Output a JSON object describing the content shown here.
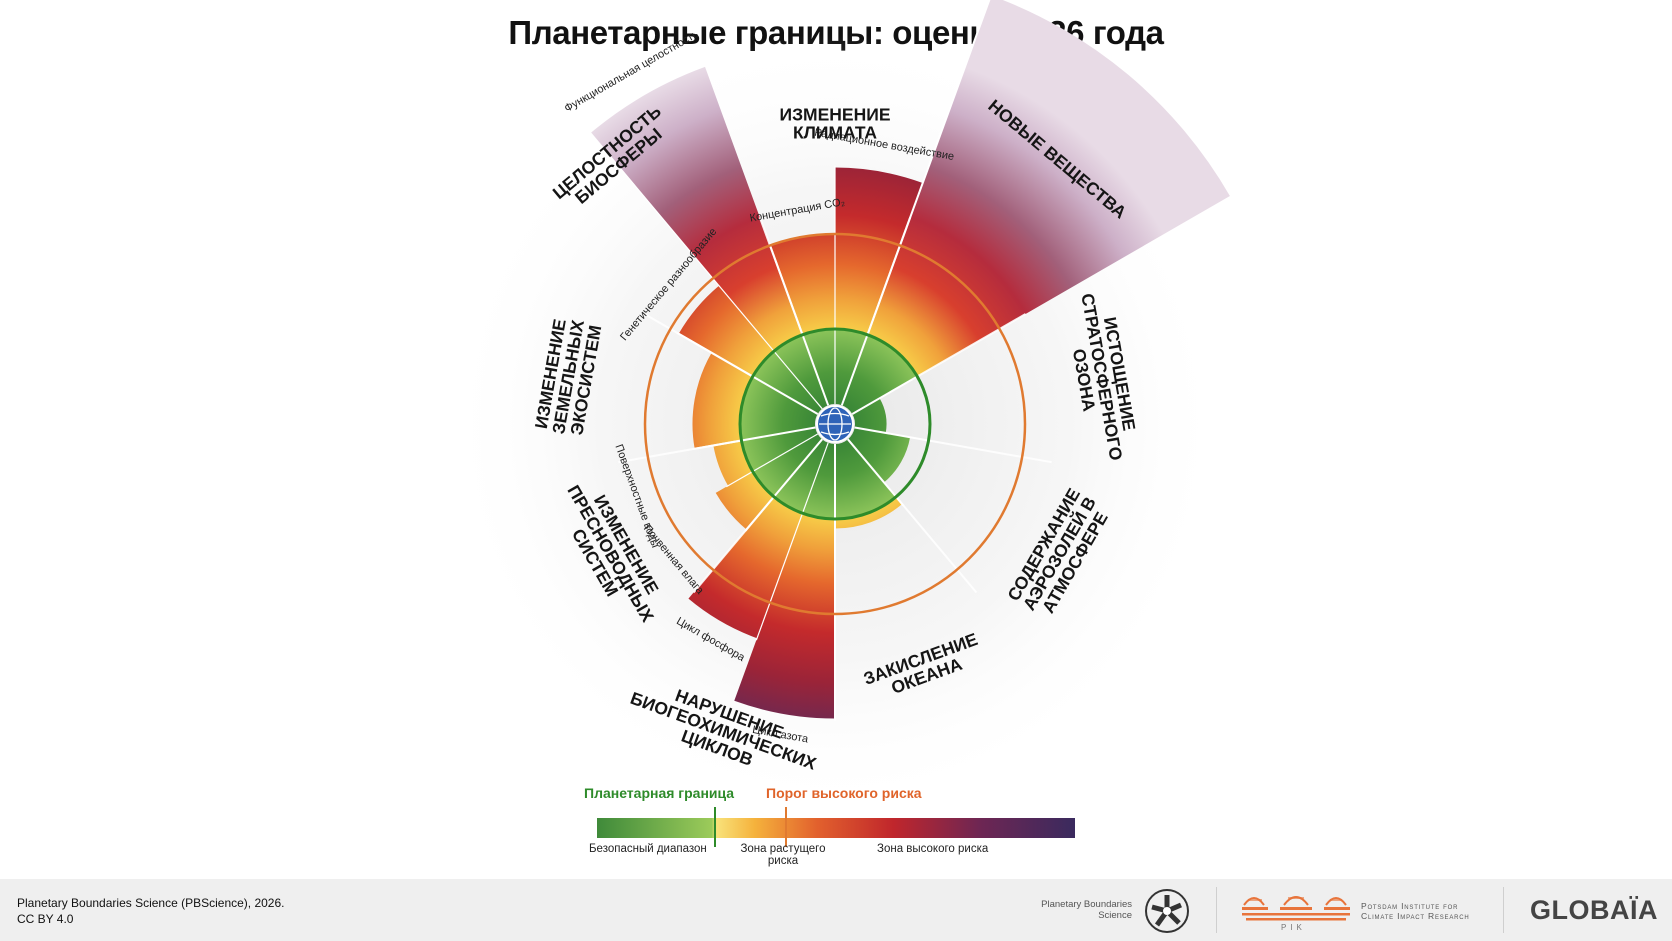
{
  "title": "Планетарные границы: оценка 2026 года",
  "colors": {
    "safe": "#4e9a3a",
    "boundary_line": "#2e8b2a",
    "high_risk_line": "#e07a30",
    "increasing": "#f5c33b",
    "high": "#c0262c",
    "very_high": "#3d2860",
    "ghost_label": "#151515"
  },
  "chart_data": {
    "type": "polar-wedge",
    "scale_note": "radial value: 1 = planetary boundary (green circle), 2 = high-risk threshold (orange circle)",
    "categories": [
      {
        "name": "ИЗМЕНЕНИЕ КЛИМАТА",
        "sub": [
          {
            "name": "Концентрация CO₂",
            "value": 2.0
          },
          {
            "name": "Радиационное воздействие",
            "value": 2.7
          }
        ]
      },
      {
        "name": "НОВЫЕ ВЕЩЕСТВА",
        "sub": [
          {
            "name": "",
            "value": 4.8,
            "unknown_upper": true
          }
        ]
      },
      {
        "name": "ИСТОЩЕНИЕ СТРАТОСФЕРНОГО ОЗОНА",
        "sub": [
          {
            "name": "",
            "value": 0.42
          }
        ]
      },
      {
        "name": "СОДЕРЖАНИЕ АЭРОЗОЛЕЙ В АТМОСФЕРЕ",
        "sub": [
          {
            "name": "",
            "value": 0.75
          }
        ]
      },
      {
        "name": "ЗАКИСЛЕНИЕ ОКЕАНА",
        "sub": [
          {
            "name": "",
            "value": 1.1
          }
        ]
      },
      {
        "name": "НАРУШЕНИЕ БИОГЕОХИМИЧЕСКИХ ЦИКЛОВ",
        "sub": [
          {
            "name": "Цикл азота",
            "value": 3.1
          },
          {
            "name": "Цикл фосфора",
            "value": 2.4
          }
        ]
      },
      {
        "name": "ИЗМЕНЕНИЕ ПРЕСНОВОДНЫХ СИСТЕМ",
        "sub": [
          {
            "name": "Почвенная влага",
            "value": 1.45
          },
          {
            "name": "Поверхностные воды",
            "value": 1.3
          }
        ]
      },
      {
        "name": "ИЗМЕНЕНИЕ ЗЕМЕЛЬНЫХ ЭКОСИСТЕМ",
        "sub": [
          {
            "name": "",
            "value": 1.5
          }
        ]
      },
      {
        "name": "ЦЕЛОСТНОСТЬ БИОСФЕРЫ",
        "sub": [
          {
            "name": "Генетическое разнообразие",
            "value": 1.9
          },
          {
            "name": "Функциональная целостность",
            "value": 4.0,
            "unknown_upper": true
          }
        ]
      }
    ],
    "legend": {
      "boundary_label": "Планетарная граница",
      "threshold_label": "Порог высокого риска",
      "zones": [
        "Безопасный диапазон",
        "Зона растущего риска",
        "Зона высокого риска"
      ]
    }
  },
  "footer": {
    "credit_line1": "Planetary Boundaries Science (PBScience), 2026.",
    "credit_line2": "CC BY 4.0",
    "logo1_line1": "Planetary Boundaries",
    "logo1_line2": "Science",
    "pik_small": "PIK",
    "pik_line1": "Potsdam Institute for",
    "pik_line2": "Climate Impact Research",
    "globaia": "GLOBAÏA"
  }
}
